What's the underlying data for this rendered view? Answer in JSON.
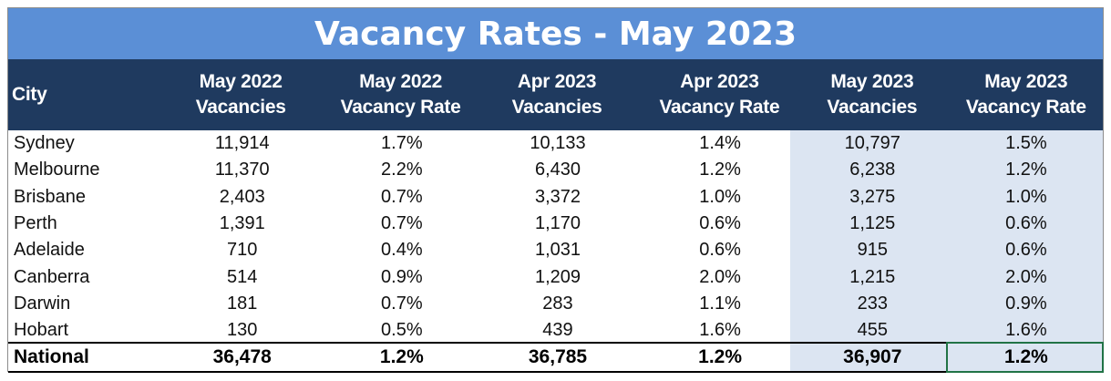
{
  "title": "Vacancy Rates - May 2023",
  "headers": [
    "City",
    "May 2022\nVacancies",
    "May 2022\nVacancy Rate",
    "Apr 2023\nVacancies",
    "Apr 2023\nVacancy Rate",
    "May 2023\nVacancies",
    "May 2023\nVacancy Rate"
  ],
  "rows": [
    [
      "Sydney",
      "11,914",
      "1.7%",
      "10,133",
      "1.4%",
      "10,797",
      "1.5%"
    ],
    [
      "Melbourne",
      "11,370",
      "2.2%",
      "6,430",
      "1.2%",
      "6,238",
      "1.2%"
    ],
    [
      "Brisbane",
      "2,403",
      "0.7%",
      "3,372",
      "1.0%",
      "3,275",
      "1.0%"
    ],
    [
      "Perth",
      "1,391",
      "0.7%",
      "1,170",
      "0.6%",
      "1,125",
      "0.6%"
    ],
    [
      "Adelaide",
      "710",
      "0.4%",
      "1,031",
      "0.6%",
      "915",
      "0.6%"
    ],
    [
      "Canberra",
      "514",
      "0.9%",
      "1,209",
      "2.0%",
      "1,215",
      "2.0%"
    ],
    [
      "Darwin",
      "181",
      "0.7%",
      "283",
      "1.1%",
      "233",
      "0.9%"
    ],
    [
      "Hobart",
      "130",
      "0.5%",
      "439",
      "1.6%",
      "455",
      "1.6%"
    ]
  ],
  "national": [
    "National",
    "36,478",
    "1.2%",
    "36,785",
    "1.2%",
    "36,907",
    "1.2%"
  ],
  "colors": {
    "title_bg": "#5b8fd6",
    "header_bg": "#1f3a5f",
    "highlight_bg": "#dce5f2",
    "selection_border": "#217346"
  }
}
